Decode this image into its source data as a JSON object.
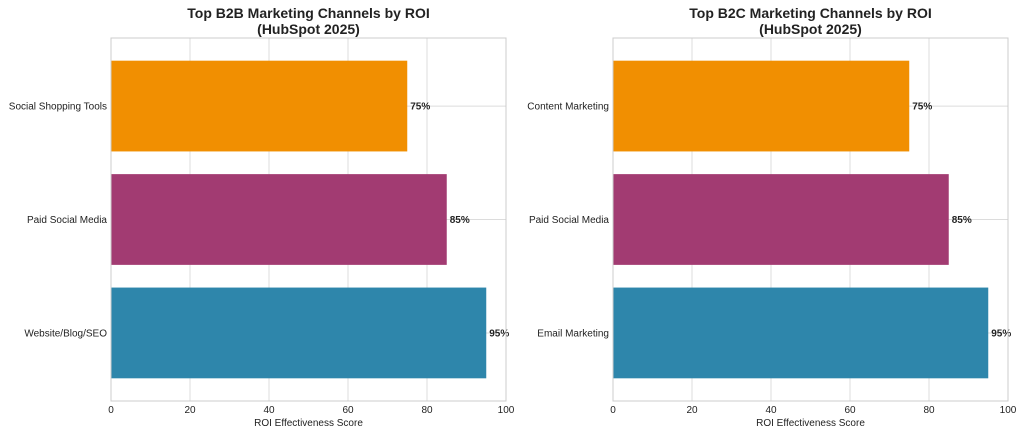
{
  "chart_data": [
    {
      "type": "bar",
      "orientation": "horizontal",
      "title_lines": [
        "Top B2B Marketing Channels by ROI",
        "(HubSpot 2025)"
      ],
      "categories": [
        "Social Shopping Tools",
        "Paid Social Media",
        "Website/Blog/SEO"
      ],
      "values": [
        75,
        85,
        95
      ],
      "data_labels": [
        "75%",
        "85%",
        "95%"
      ],
      "colors": [
        "#F18F01",
        "#A23B72",
        "#2E86AB"
      ],
      "xlabel": "ROI Effectiveness Score",
      "ylabel": "",
      "xlim": [
        0,
        100
      ],
      "xticks": [
        "0",
        "20",
        "40",
        "60",
        "80",
        "100"
      ],
      "grid": true
    },
    {
      "type": "bar",
      "orientation": "horizontal",
      "title_lines": [
        "Top B2C Marketing Channels by ROI",
        "(HubSpot 2025)"
      ],
      "categories": [
        "Content Marketing",
        "Paid Social Media",
        "Email Marketing"
      ],
      "values": [
        75,
        85,
        95
      ],
      "data_labels": [
        "75%",
        "85%",
        "95%"
      ],
      "colors": [
        "#F18F01",
        "#A23B72",
        "#2E86AB"
      ],
      "xlabel": "ROI Effectiveness Score",
      "ylabel": "",
      "xlim": [
        0,
        100
      ],
      "xticks": [
        "0",
        "20",
        "40",
        "60",
        "80",
        "100"
      ],
      "grid": true
    }
  ]
}
